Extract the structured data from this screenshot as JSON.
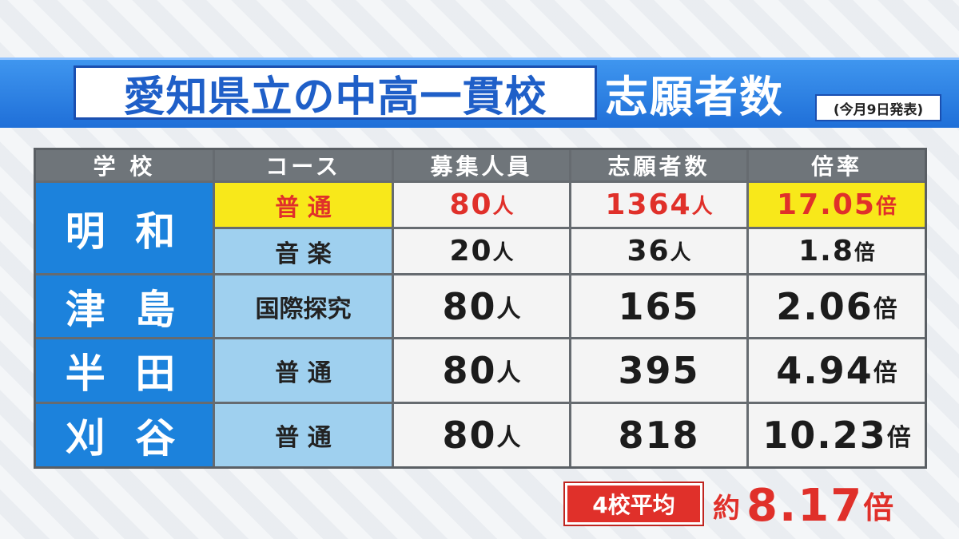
{
  "header": {
    "title_main": "愛知県立の中高一貫校",
    "title_sub": "志願者数",
    "note": "(今月9日発表)"
  },
  "table": {
    "columns": [
      "学 校",
      "コース",
      "募集人員",
      "志願者数",
      "倍率"
    ],
    "rows": [
      {
        "school": "明 和",
        "course": "普  通",
        "capacity": "80",
        "capacity_unit": "人",
        "applicants": "1364",
        "applicants_unit": "人",
        "ratio": "17.05",
        "ratio_unit": "倍"
      },
      {
        "school": "",
        "course": "音  楽",
        "capacity": "20",
        "capacity_unit": "人",
        "applicants": "36",
        "applicants_unit": "人",
        "ratio": "1.8",
        "ratio_unit": "倍"
      },
      {
        "school": "津 島",
        "course": "国際探究",
        "capacity": "80",
        "capacity_unit": "人",
        "applicants": "165",
        "applicants_unit": "",
        "ratio": "2.06",
        "ratio_unit": "倍"
      },
      {
        "school": "半 田",
        "course": "普  通",
        "capacity": "80",
        "capacity_unit": "人",
        "applicants": "395",
        "applicants_unit": "",
        "ratio": "4.94",
        "ratio_unit": "倍"
      },
      {
        "school": "刈 谷",
        "course": "普  通",
        "capacity": "80",
        "capacity_unit": "人",
        "applicants": "818",
        "applicants_unit": "",
        "ratio": "10.23",
        "ratio_unit": "倍"
      }
    ]
  },
  "summary": {
    "label": "4校平均",
    "prefix": "約",
    "value": "8.17",
    "unit": "倍"
  },
  "colors": {
    "banner": "#1f6fd8",
    "school_cell": "#1c82dc",
    "course_cell": "#9fd0ef",
    "highlight_yellow": "#f8e81a",
    "highlight_red": "#e0302a"
  }
}
